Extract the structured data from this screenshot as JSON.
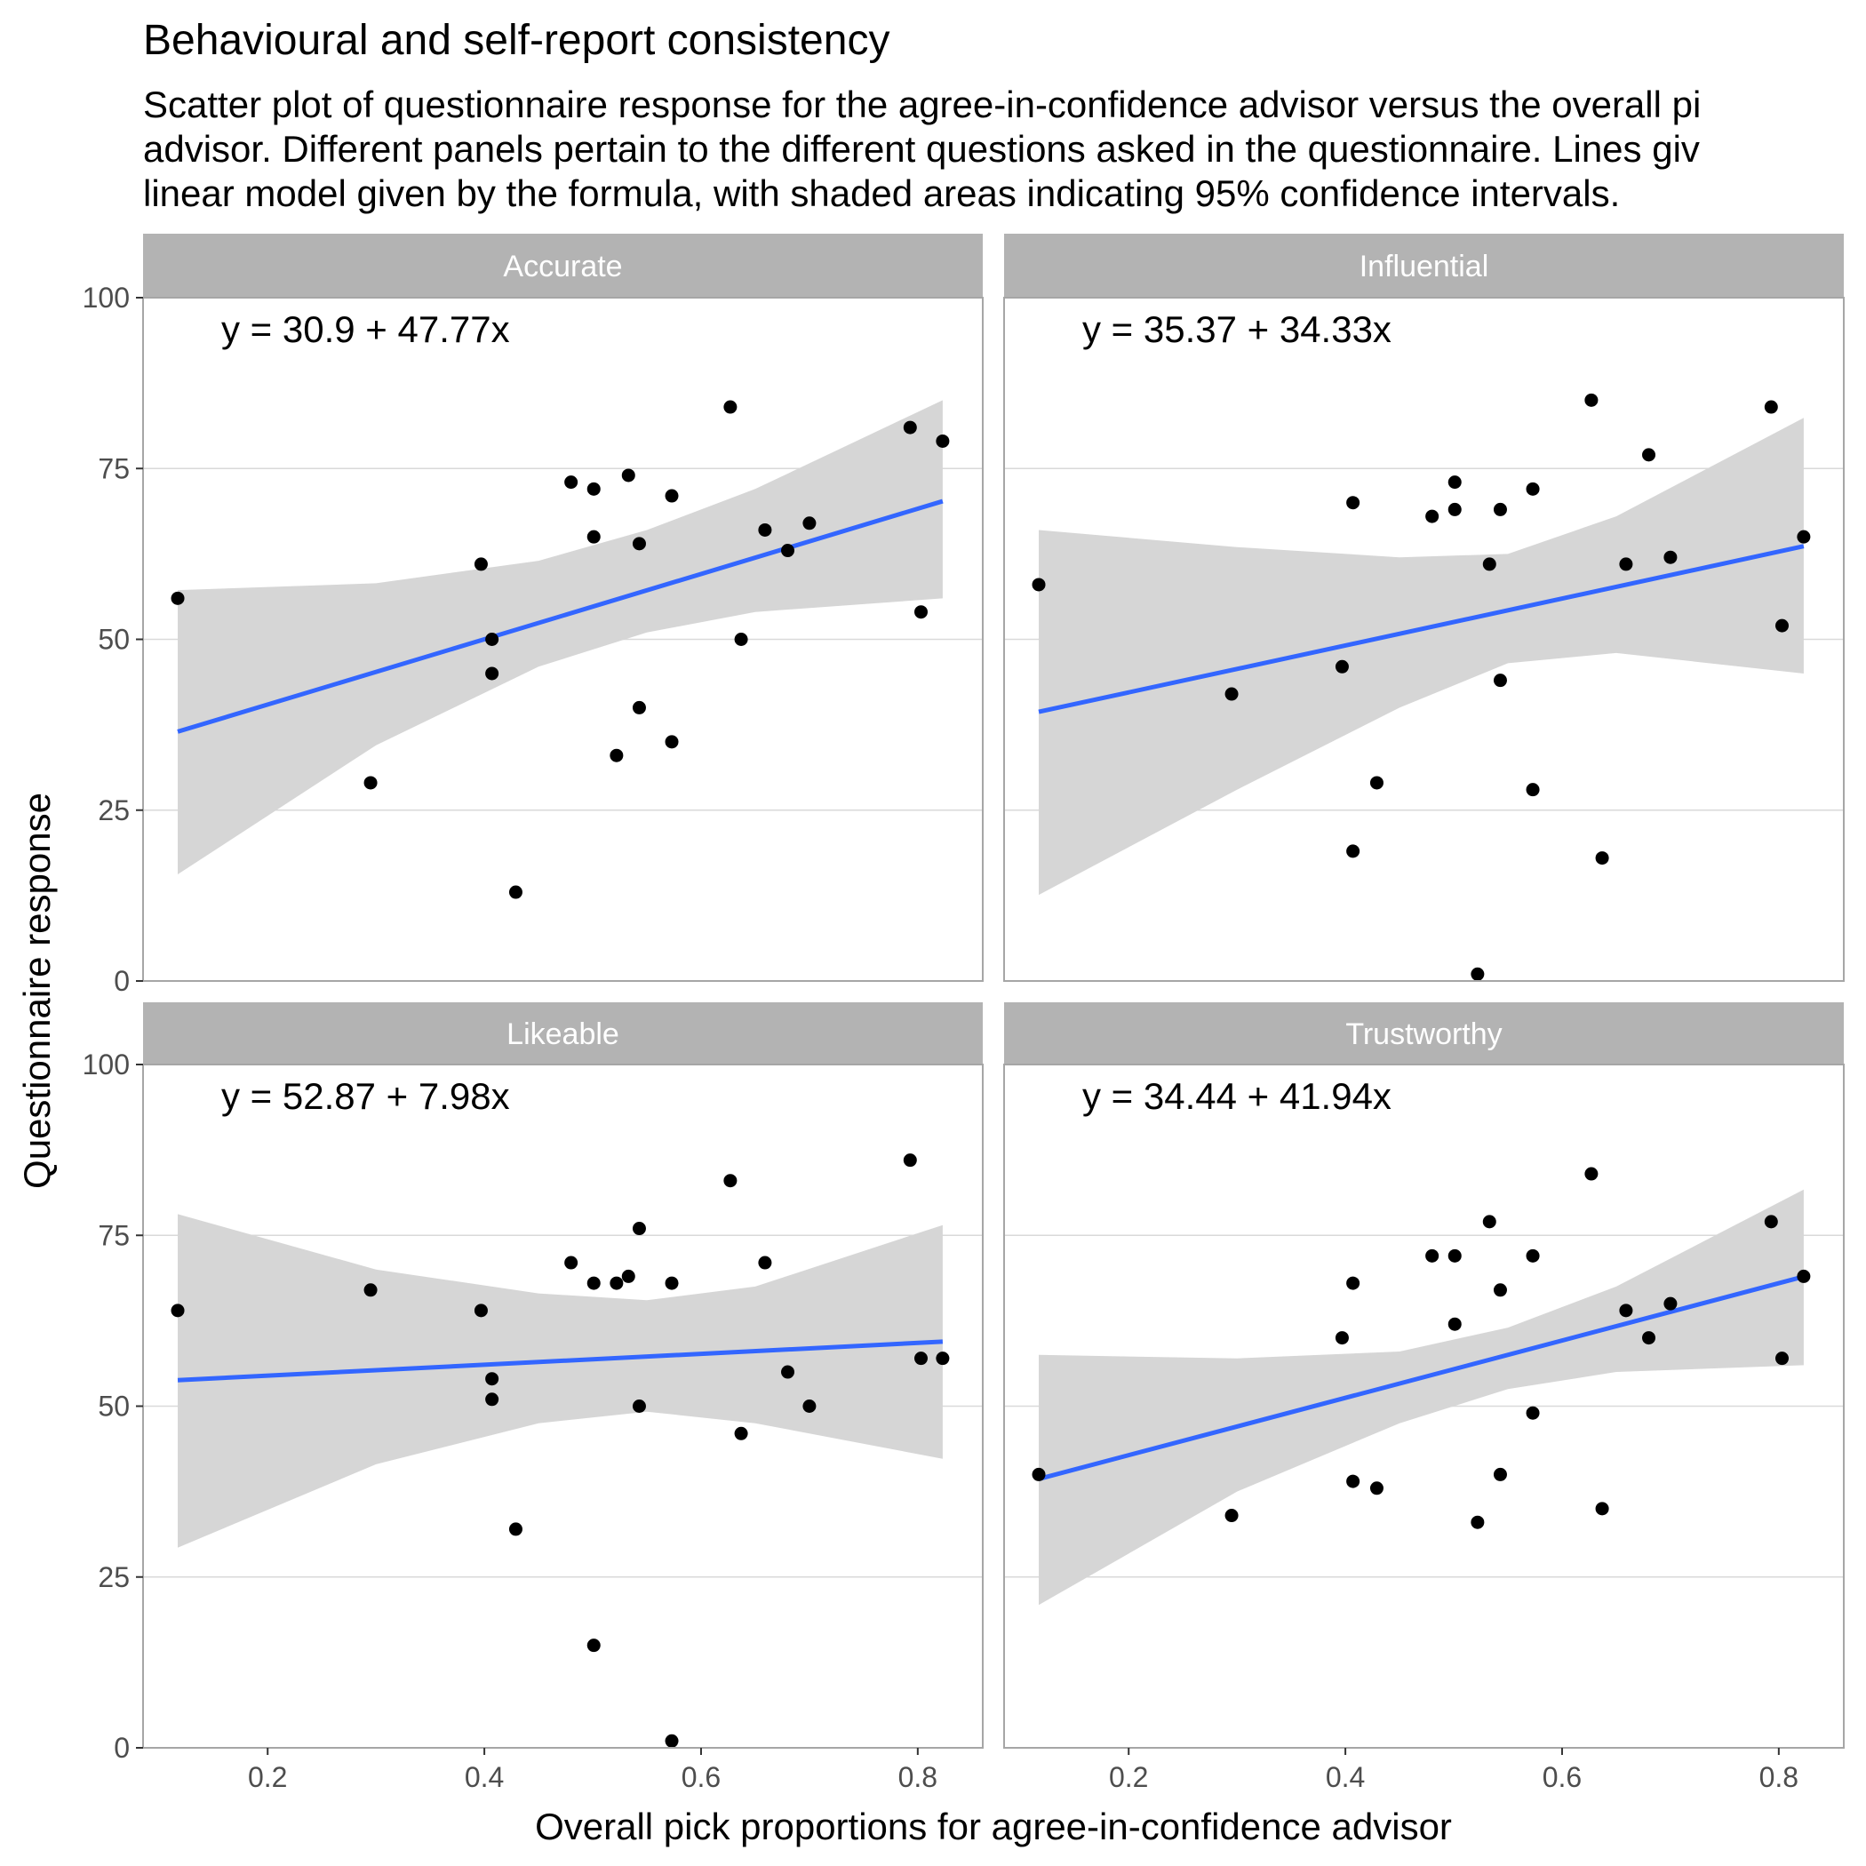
{
  "title": "Behavioural and self-report consistency",
  "subtitle_lines": [
    "Scatter plot of questionnaire response for the agree-in-confidence advisor versus the overall pi",
    "advisor. Different panels pertain to the different questions asked in the questionnaire. Lines giv",
    "linear model given by the formula, with shaded areas indicating 95% confidence intervals."
  ],
  "colors": {
    "strip_bg": "#b3b3b3",
    "strip_text": "#ffffff",
    "panel_border": "#a6a6a6",
    "grid": "#d9d9d9",
    "band": "#d6d6d6",
    "line": "#3366ff",
    "point": "#000000",
    "axis_text": "#4d4d4d"
  },
  "chart_data": {
    "type": "scatter",
    "xlabel": "Overall pick proportions for agree-in-confidence advisor",
    "ylabel": "Questionnaire response",
    "xlim": [
      0.085,
      0.86
    ],
    "ylim": [
      0,
      100
    ],
    "x_ticks": [
      0.2,
      0.4,
      0.6,
      0.8
    ],
    "x_tick_labels": [
      "0.2",
      "0.4",
      "0.6",
      "0.8"
    ],
    "y_ticks": [
      0,
      25,
      50,
      75,
      100
    ],
    "y_tick_labels": [
      "0",
      "25",
      "50",
      "75",
      "100"
    ],
    "grid": "horizontal",
    "facets": [
      {
        "label": "Accurate",
        "equation": "y = 30.9 + 47.77x",
        "intercept": 30.9,
        "slope": 47.77,
        "band": {
          "x": [
            0.117,
            0.3,
            0.45,
            0.55,
            0.65,
            0.823
          ],
          "lower": [
            15.6,
            34.5,
            46.0,
            51.0,
            54.0,
            56.0
          ],
          "upper": [
            57.2,
            58.2,
            61.5,
            66.0,
            72.0,
            85.0
          ]
        },
        "points": [
          [
            0.117,
            56
          ],
          [
            0.295,
            29
          ],
          [
            0.397,
            61
          ],
          [
            0.407,
            50
          ],
          [
            0.407,
            45
          ],
          [
            0.429,
            13
          ],
          [
            0.48,
            73
          ],
          [
            0.501,
            72
          ],
          [
            0.501,
            65
          ],
          [
            0.522,
            33
          ],
          [
            0.533,
            74
          ],
          [
            0.543,
            64
          ],
          [
            0.543,
            40
          ],
          [
            0.573,
            71
          ],
          [
            0.573,
            35
          ],
          [
            0.627,
            84
          ],
          [
            0.637,
            50
          ],
          [
            0.659,
            66
          ],
          [
            0.68,
            63
          ],
          [
            0.7,
            67
          ],
          [
            0.793,
            81
          ],
          [
            0.803,
            54
          ],
          [
            0.823,
            79
          ]
        ]
      },
      {
        "label": "Influential",
        "equation": "y = 35.37 + 34.33x",
        "intercept": 35.37,
        "slope": 34.33,
        "band": {
          "x": [
            0.117,
            0.3,
            0.45,
            0.55,
            0.65,
            0.823
          ],
          "lower": [
            12.6,
            28.0,
            40.0,
            46.5,
            48.0,
            45.0
          ],
          "upper": [
            66.0,
            63.5,
            62.0,
            62.5,
            68.0,
            82.4
          ]
        },
        "points": [
          [
            0.117,
            58
          ],
          [
            0.295,
            42
          ],
          [
            0.397,
            46
          ],
          [
            0.407,
            70
          ],
          [
            0.407,
            19
          ],
          [
            0.429,
            29
          ],
          [
            0.48,
            68
          ],
          [
            0.501,
            73
          ],
          [
            0.501,
            69
          ],
          [
            0.522,
            1
          ],
          [
            0.533,
            61
          ],
          [
            0.543,
            69
          ],
          [
            0.543,
            44
          ],
          [
            0.573,
            72
          ],
          [
            0.573,
            28
          ],
          [
            0.627,
            85
          ],
          [
            0.637,
            18
          ],
          [
            0.659,
            61
          ],
          [
            0.68,
            77
          ],
          [
            0.7,
            62
          ],
          [
            0.793,
            84
          ],
          [
            0.803,
            52
          ],
          [
            0.823,
            65
          ]
        ]
      },
      {
        "label": "Likeable",
        "equation": "y = 52.87 + 7.98x",
        "intercept": 52.87,
        "slope": 7.98,
        "band": {
          "x": [
            0.117,
            0.3,
            0.45,
            0.55,
            0.65,
            0.823
          ],
          "lower": [
            29.3,
            41.5,
            47.5,
            49.2,
            47.5,
            42.3
          ],
          "upper": [
            78.1,
            70.0,
            66.5,
            65.5,
            67.5,
            76.5
          ]
        },
        "points": [
          [
            0.117,
            64
          ],
          [
            0.295,
            67
          ],
          [
            0.397,
            64
          ],
          [
            0.407,
            54
          ],
          [
            0.407,
            51
          ],
          [
            0.429,
            32
          ],
          [
            0.48,
            71
          ],
          [
            0.501,
            68
          ],
          [
            0.501,
            15
          ],
          [
            0.522,
            68
          ],
          [
            0.533,
            69
          ],
          [
            0.543,
            76
          ],
          [
            0.543,
            50
          ],
          [
            0.573,
            68
          ],
          [
            0.573,
            1
          ],
          [
            0.627,
            83
          ],
          [
            0.637,
            46
          ],
          [
            0.659,
            71
          ],
          [
            0.68,
            55
          ],
          [
            0.7,
            50
          ],
          [
            0.793,
            86
          ],
          [
            0.803,
            57
          ],
          [
            0.823,
            57
          ]
        ]
      },
      {
        "label": "Trustworthy",
        "equation": "y = 34.44 + 41.94x",
        "intercept": 34.44,
        "slope": 41.94,
        "band": {
          "x": [
            0.117,
            0.3,
            0.45,
            0.55,
            0.65,
            0.823
          ],
          "lower": [
            20.9,
            37.5,
            47.5,
            52.5,
            55.0,
            56.0
          ],
          "upper": [
            57.5,
            57.0,
            58.0,
            61.5,
            67.5,
            81.7
          ]
        },
        "points": [
          [
            0.117,
            40
          ],
          [
            0.295,
            34
          ],
          [
            0.397,
            60
          ],
          [
            0.407,
            68
          ],
          [
            0.407,
            39
          ],
          [
            0.429,
            38
          ],
          [
            0.48,
            72
          ],
          [
            0.501,
            72
          ],
          [
            0.501,
            62
          ],
          [
            0.522,
            33
          ],
          [
            0.533,
            77
          ],
          [
            0.543,
            67
          ],
          [
            0.543,
            40
          ],
          [
            0.573,
            72
          ],
          [
            0.573,
            49
          ],
          [
            0.627,
            84
          ],
          [
            0.637,
            35
          ],
          [
            0.659,
            64
          ],
          [
            0.68,
            60
          ],
          [
            0.7,
            65
          ],
          [
            0.793,
            77
          ],
          [
            0.803,
            57
          ],
          [
            0.823,
            69
          ]
        ]
      }
    ]
  }
}
